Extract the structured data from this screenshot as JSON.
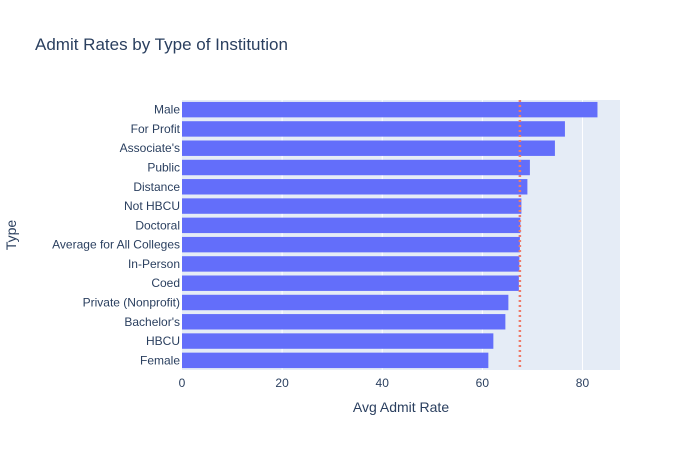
{
  "chart_data": {
    "type": "bar",
    "orientation": "horizontal",
    "title": "Admit Rates by Type of Institution",
    "xlabel": "Avg Admit Rate",
    "ylabel": "Type",
    "xlim": [
      0,
      87.5
    ],
    "xticks": [
      0,
      20,
      40,
      60,
      80
    ],
    "grid": true,
    "categories": [
      "Male",
      "For Profit",
      "Associate's",
      "Public",
      "Distance",
      "Not HBCU",
      "Doctoral",
      "Average for All Colleges",
      "In-Person",
      "Coed",
      "Private (Nonprofit)",
      "Bachelor's",
      "HBCU",
      "Female"
    ],
    "values": [
      83.0,
      76.5,
      74.5,
      69.5,
      69.0,
      67.8,
      67.6,
      67.5,
      67.4,
      67.3,
      65.2,
      64.6,
      62.2,
      61.2
    ],
    "reference_line": {
      "x": 67.5,
      "style": "dotted"
    },
    "colors": {
      "bar": "#636efa",
      "plot_bg": "#e5ecf6",
      "reference_line": "#ef7a68",
      "text": "#2a3f5f"
    }
  }
}
